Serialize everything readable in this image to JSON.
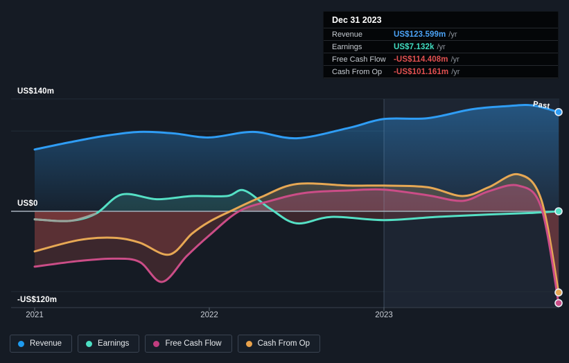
{
  "colors": {
    "background": "#151b24",
    "grid_faint": "#232c37",
    "axis_line": "#39424e",
    "zero_line": "#98a2ae",
    "tick": "#5a6470",
    "negative_fill": "#c8504f",
    "negative_fill_opacity": 0.22,
    "past_region_tint": "rgba(125,170,215,0.08)",
    "past_divider": "rgba(150,185,220,0.28)",
    "marker_ring": "#e9eef4"
  },
  "tooltip": {
    "date": "Dec 31 2023",
    "rows": [
      {
        "label": "Revenue",
        "value": "US$123.599m",
        "suffix": "/yr",
        "value_color": "#4ba2f5"
      },
      {
        "label": "Earnings",
        "value": "US$7.132k",
        "suffix": "/yr",
        "value_color": "#41dcc0"
      },
      {
        "label": "Free Cash Flow",
        "value": "-US$114.408m",
        "suffix": "/yr",
        "value_color": "#e25050"
      },
      {
        "label": "Cash From Op",
        "value": "-US$101.161m",
        "suffix": "/yr",
        "value_color": "#e25050"
      }
    ]
  },
  "axis": {
    "y_labels": [
      {
        "text": "US$140m",
        "value": 140
      },
      {
        "text": "US$0",
        "value": 0
      },
      {
        "text": "-US$120m",
        "value": -120
      }
    ],
    "gridline_values": [
      140,
      100,
      -100
    ],
    "x_ticks": [
      {
        "label": "2021",
        "year": 2021
      },
      {
        "label": "2022",
        "year": 2022
      },
      {
        "label": "2023",
        "year": 2023
      }
    ],
    "past_label": "Past",
    "past_region_start_year": 2023
  },
  "legend": [
    {
      "label": "Revenue",
      "color": "#1e9bf0"
    },
    {
      "label": "Earnings",
      "color": "#4cdfc3"
    },
    {
      "label": "Free Cash Flow",
      "color": "#c13d7f"
    },
    {
      "label": "Cash From Op",
      "color": "#e9a24b"
    }
  ],
  "chart_data": {
    "type": "area",
    "x_unit": "year",
    "x_range": [
      2021,
      2024
    ],
    "ylim": [
      -120,
      140
    ],
    "value_unit": "US$ millions",
    "legend_position": "bottom",
    "grid": true,
    "series": [
      {
        "name": "Revenue",
        "color": "#2f9df5",
        "gradient": true,
        "fill_opacity": 0.4,
        "x": [
          2021,
          2021.2,
          2021.4,
          2021.6,
          2021.8,
          2022,
          2022.25,
          2022.5,
          2022.8,
          2023,
          2023.25,
          2023.5,
          2023.7,
          2023.85,
          2024
        ],
        "values": [
          77,
          86,
          94,
          99,
          97,
          92,
          99,
          91,
          104,
          115,
          116,
          127,
          131,
          132,
          123.599
        ]
      },
      {
        "name": "Earnings",
        "color": "#55e0c5",
        "fill_opacity": 0.16,
        "gray_segment_end": 2021.38,
        "gray_color": "#9aa49c",
        "x": [
          2021,
          2021.2,
          2021.35,
          2021.5,
          2021.7,
          2021.9,
          2022.1,
          2022.2,
          2022.35,
          2022.5,
          2022.7,
          2023,
          2023.3,
          2023.6,
          2023.85,
          2024
        ],
        "values": [
          -10,
          -12,
          -3,
          21,
          15,
          19,
          19,
          26,
          3,
          -15,
          -7,
          -11,
          -7,
          -4,
          -2,
          0.007
        ]
      },
      {
        "name": "Cash From Op",
        "color": "#e7a854",
        "fill_opacity": 0.22,
        "x": [
          2021,
          2021.25,
          2021.45,
          2021.6,
          2021.77,
          2021.9,
          2022,
          2022.12,
          2022.3,
          2022.5,
          2022.8,
          2023,
          2023.25,
          2023.45,
          2023.6,
          2023.77,
          2023.9,
          2024
        ],
        "values": [
          -50,
          -36,
          -33,
          -39,
          -54,
          -28,
          -13,
          0,
          18,
          34,
          32,
          32,
          30,
          19,
          30,
          46,
          15,
          -101.161
        ]
      },
      {
        "name": "Free Cash Flow",
        "color": "#cb4d87",
        "fill_opacity": 0.3,
        "x": [
          2021,
          2021.25,
          2021.45,
          2021.6,
          2021.73,
          2021.87,
          2022,
          2022.17,
          2022.35,
          2022.55,
          2022.8,
          2023,
          2023.25,
          2023.45,
          2023.6,
          2023.77,
          2023.9,
          2024
        ],
        "values": [
          -69,
          -62,
          -59,
          -63,
          -88,
          -56,
          -30,
          0,
          13,
          23,
          26,
          27,
          20,
          13,
          25,
          32,
          5,
          -114.408
        ]
      }
    ]
  }
}
